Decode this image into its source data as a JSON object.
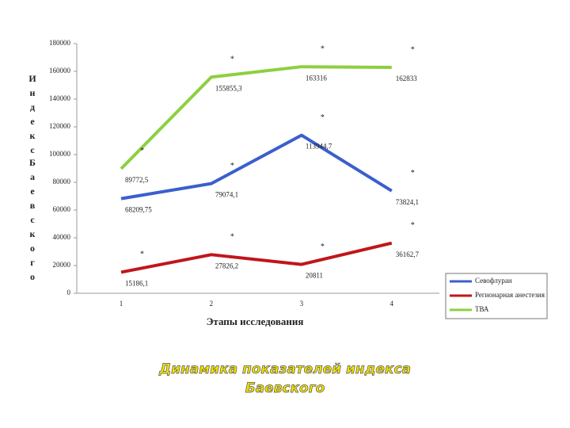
{
  "chart_data": {
    "type": "line",
    "y_label_lines": [
      "Индекс",
      "Баевского"
    ],
    "x_label": "Этапы исследования",
    "categories": [
      "1",
      "2",
      "3",
      "4"
    ],
    "ylim": [
      0,
      180000
    ],
    "yticks": [
      0,
      20000,
      40000,
      60000,
      80000,
      100000,
      120000,
      140000,
      160000,
      180000
    ],
    "series": [
      {
        "name": "Севофлуран",
        "color": "#3a5fcd",
        "values": [
          68209.75,
          79074.1,
          113944.7,
          73824.1
        ],
        "value_labels": [
          "68209,75",
          "79074,1",
          "113944,7",
          "73824,1"
        ],
        "marks": [
          null,
          "*",
          "*",
          "*"
        ]
      },
      {
        "name": "Регионарная анестезия",
        "color": "#c0161a",
        "values": [
          15186.1,
          27826.2,
          20811,
          36162.7
        ],
        "value_labels": [
          "15186,1",
          "27826,2",
          "20811",
          "36162,7"
        ],
        "marks": [
          "*",
          "*",
          "*",
          "*"
        ]
      },
      {
        "name": "ТВА",
        "color": "#8dd040",
        "values": [
          89772.5,
          155855.3,
          163316,
          162833
        ],
        "value_labels": [
          "89772,5",
          "155855,3",
          "163316",
          "162833"
        ],
        "marks": [
          "*",
          "*",
          "*",
          "*"
        ]
      }
    ],
    "caption_lines": [
      "Динамика показателей индекса",
      "Баевского"
    ]
  }
}
